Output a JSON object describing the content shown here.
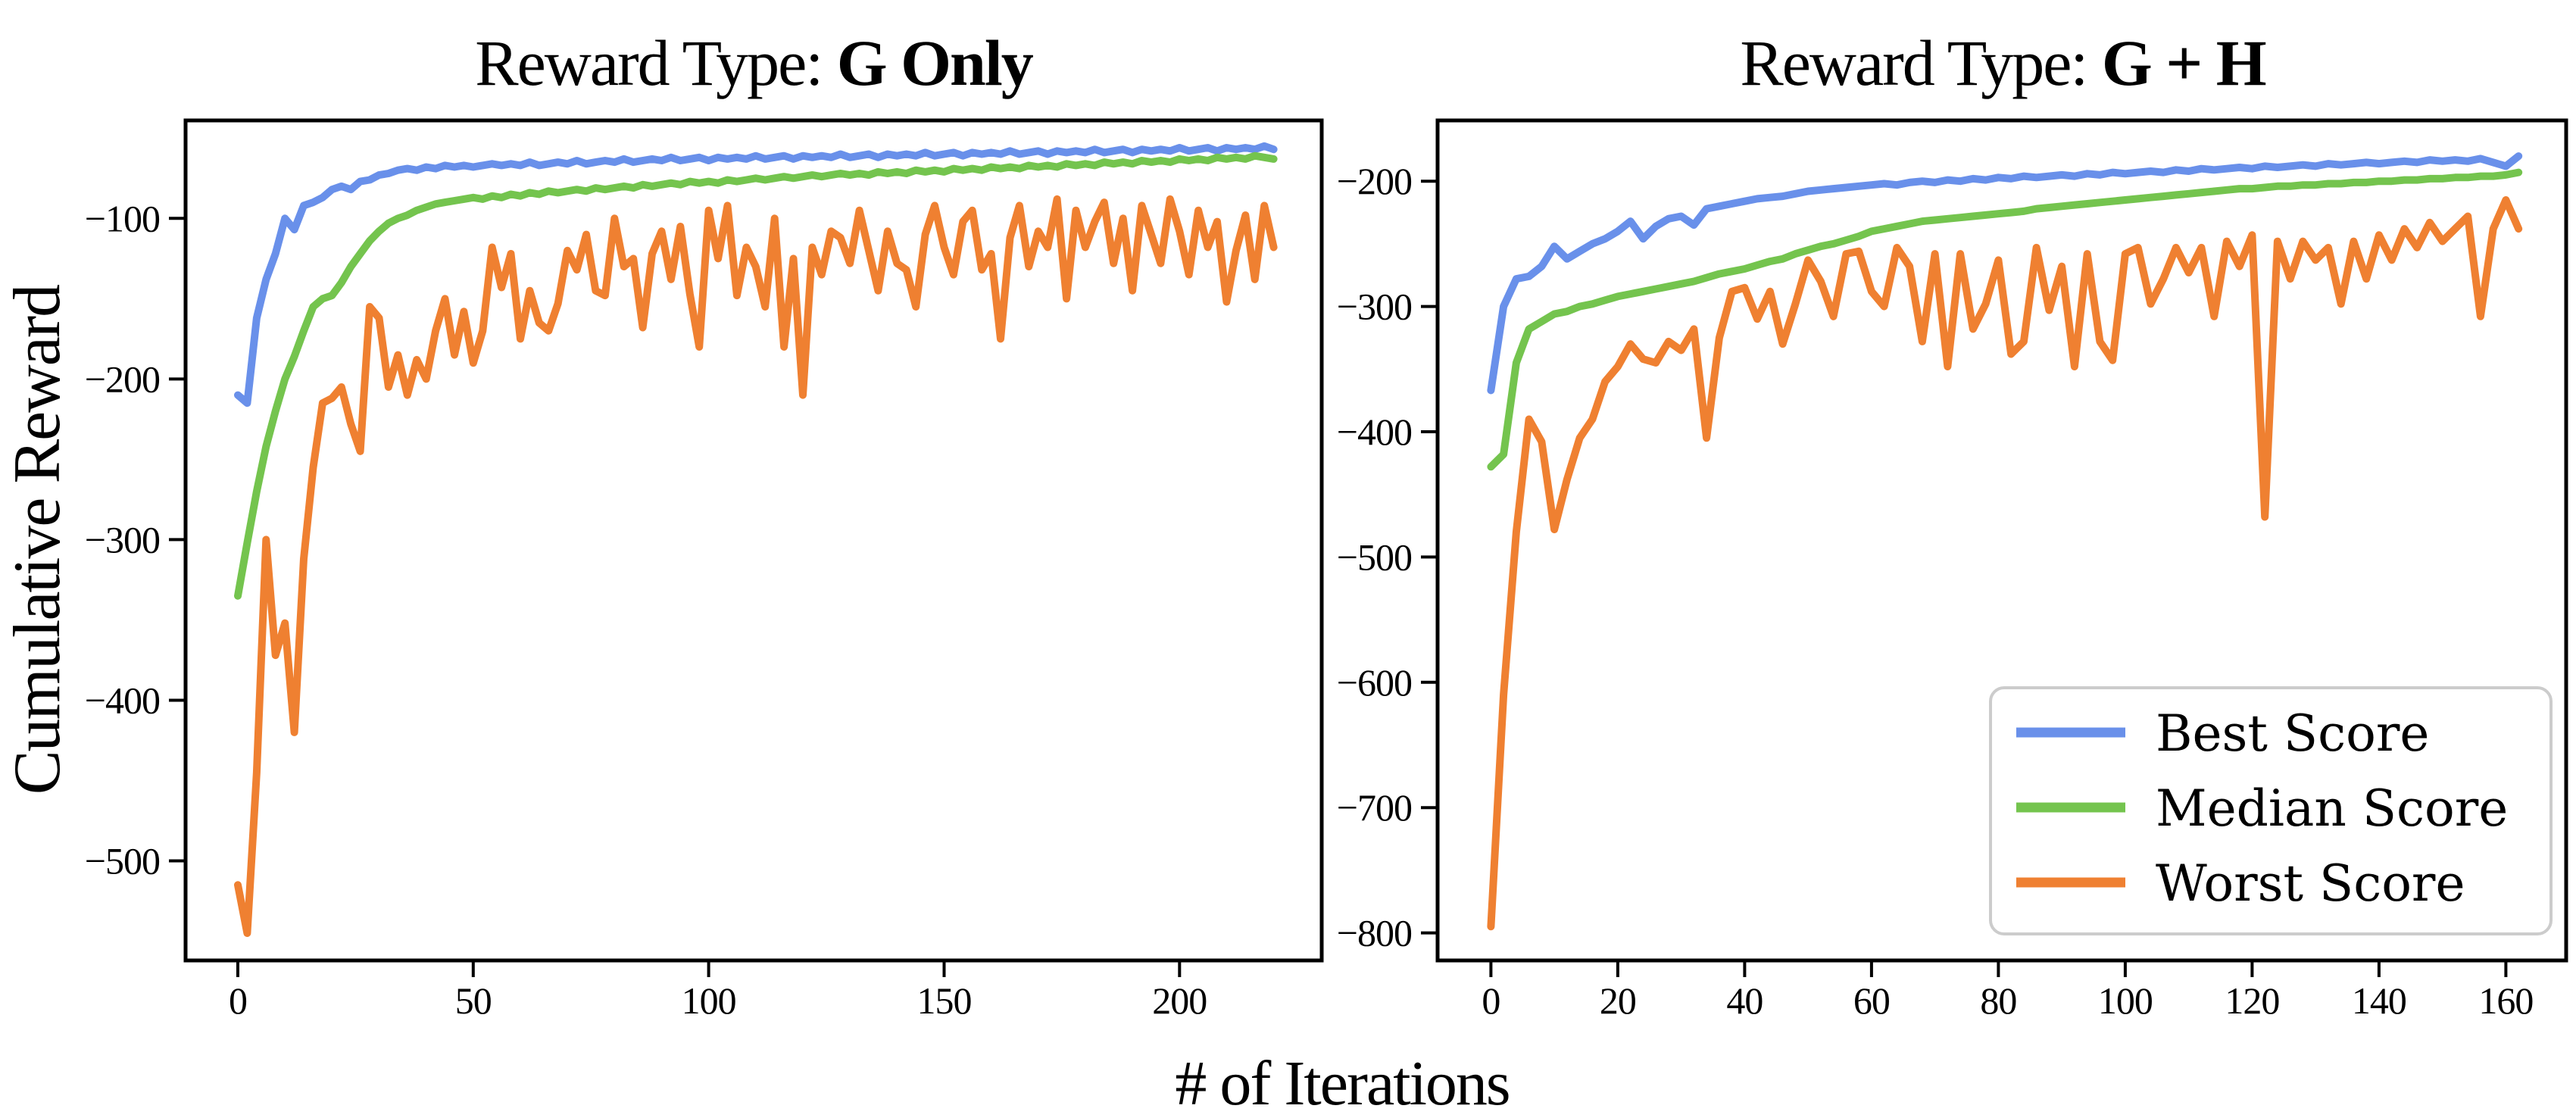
{
  "figure": {
    "xlabel": "# of Iterations",
    "ylabel": "Cumulative Reward",
    "background_color": "#ffffff",
    "text_color": "#000000",
    "legend_border_color": "#cccccc"
  },
  "chart_data": [
    {
      "type": "line",
      "title_prefix": "Reward Type: ",
      "title_bold": "G Only",
      "ylabel": "Cumulative Reward",
      "xlabel_shared": "# of Iterations",
      "xticks": [
        0,
        50,
        100,
        150,
        200
      ],
      "yticks": [
        -100,
        -200,
        -300,
        -400,
        -500
      ],
      "xlim": [
        -11.1,
        230.2
      ],
      "ylim": [
        -562,
        -39
      ],
      "grid": false,
      "x_start": 0,
      "x_step": 2,
      "series": [
        {
          "name": "Best Score",
          "color": "#6990ea",
          "values": [
            -210,
            -215,
            -162,
            -138,
            -122,
            -100,
            -107,
            -92,
            -90,
            -87,
            -82,
            -80,
            -82,
            -77,
            -76,
            -73,
            -72,
            -70,
            -69,
            -70,
            -68,
            -69,
            -67,
            -68,
            -67,
            -68,
            -67,
            -66,
            -67,
            -66,
            -67,
            -65,
            -67,
            -66,
            -65,
            -66,
            -64,
            -66,
            -65,
            -64,
            -65,
            -63,
            -65,
            -64,
            -63,
            -64,
            -62,
            -64,
            -63,
            -62,
            -64,
            -62,
            -63,
            -62,
            -63,
            -61,
            -63,
            -62,
            -61,
            -63,
            -61,
            -62,
            -61,
            -62,
            -60,
            -62,
            -61,
            -60,
            -62,
            -60,
            -61,
            -60,
            -61,
            -59,
            -61,
            -60,
            -59,
            -61,
            -59,
            -60,
            -59,
            -60,
            -58,
            -60,
            -59,
            -58,
            -60,
            -58,
            -59,
            -58,
            -59,
            -57,
            -59,
            -58,
            -57,
            -59,
            -57,
            -58,
            -57,
            -58,
            -56,
            -58,
            -57,
            -56,
            -58,
            -56,
            -57,
            -56,
            -57,
            -55,
            -57
          ]
        },
        {
          "name": "Median Score",
          "color": "#74c44e",
          "values": [
            -335,
            -302,
            -270,
            -242,
            -220,
            -200,
            -186,
            -170,
            -155,
            -150,
            -148,
            -140,
            -130,
            -122,
            -114,
            -108,
            -103,
            -100,
            -98,
            -95,
            -93,
            -91,
            -90,
            -89,
            -88,
            -87,
            -88,
            -86,
            -87,
            -85,
            -86,
            -84,
            -85,
            -83,
            -84,
            -83,
            -82,
            -83,
            -81,
            -82,
            -81,
            -80,
            -81,
            -79,
            -80,
            -79,
            -78,
            -79,
            -77,
            -78,
            -77,
            -78,
            -76,
            -77,
            -76,
            -75,
            -76,
            -75,
            -74,
            -75,
            -74,
            -73,
            -74,
            -73,
            -72,
            -73,
            -72,
            -73,
            -71,
            -72,
            -71,
            -72,
            -70,
            -71,
            -70,
            -71,
            -69,
            -70,
            -69,
            -70,
            -68,
            -69,
            -68,
            -69,
            -67,
            -68,
            -67,
            -68,
            -66,
            -67,
            -66,
            -67,
            -65,
            -66,
            -65,
            -66,
            -64,
            -65,
            -64,
            -65,
            -63,
            -64,
            -63,
            -64,
            -62,
            -63,
            -62,
            -63,
            -61,
            -62,
            -63
          ]
        },
        {
          "name": "Worst Score",
          "color": "#ef8031",
          "values": [
            -515,
            -545,
            -445,
            -300,
            -372,
            -352,
            -420,
            -312,
            -255,
            -215,
            -212,
            -205,
            -228,
            -245,
            -155,
            -162,
            -205,
            -185,
            -210,
            -188,
            -200,
            -170,
            -150,
            -185,
            -158,
            -190,
            -170,
            -118,
            -143,
            -122,
            -175,
            -145,
            -165,
            -170,
            -153,
            -120,
            -132,
            -110,
            -145,
            -148,
            -100,
            -130,
            -125,
            -168,
            -122,
            -108,
            -138,
            -105,
            -147,
            -180,
            -95,
            -125,
            -92,
            -148,
            -118,
            -130,
            -155,
            -100,
            -180,
            -125,
            -210,
            -118,
            -135,
            -108,
            -112,
            -128,
            -95,
            -120,
            -145,
            -108,
            -128,
            -132,
            -155,
            -110,
            -92,
            -118,
            -135,
            -102,
            -95,
            -132,
            -122,
            -175,
            -112,
            -92,
            -130,
            -108,
            -118,
            -88,
            -150,
            -95,
            -118,
            -102,
            -90,
            -128,
            -100,
            -145,
            -92,
            -110,
            -128,
            -88,
            -108,
            -135,
            -95,
            -118,
            -102,
            -152,
            -120,
            -98,
            -138,
            -92,
            -118
          ]
        }
      ]
    },
    {
      "type": "line",
      "title_prefix": "Reward Type: ",
      "title_bold": "G + H",
      "ylabel": "Cumulative Reward",
      "xlabel_shared": "# of Iterations",
      "xticks": [
        0,
        20,
        40,
        60,
        80,
        100,
        120,
        140,
        160
      ],
      "yticks": [
        -200,
        -300,
        -400,
        -500,
        -600,
        -700,
        -800
      ],
      "xlim": [
        -8.4,
        169.5
      ],
      "ylim": [
        -822,
        -151.5
      ],
      "grid": false,
      "x_start": 0,
      "x_step": 2,
      "legend": {
        "position": "lower right",
        "labels": [
          "Best Score",
          "Median Score",
          "Worst Score"
        ]
      },
      "series": [
        {
          "name": "Best Score",
          "color": "#6990ea",
          "values": [
            -367,
            -300,
            -278,
            -276,
            -268,
            -252,
            -262,
            -256,
            -250,
            -246,
            -240,
            -232,
            -246,
            -236,
            -230,
            -228,
            -235,
            -222,
            -220,
            -218,
            -216,
            -214,
            -213,
            -212,
            -210,
            -208,
            -207,
            -206,
            -205,
            -204,
            -203,
            -202,
            -203,
            -201,
            -200,
            -201,
            -199,
            -200,
            -198,
            -199,
            -197,
            -198,
            -196,
            -197,
            -196,
            -195,
            -196,
            -194,
            -195,
            -193,
            -194,
            -193,
            -192,
            -193,
            -191,
            -192,
            -190,
            -191,
            -190,
            -189,
            -190,
            -188,
            -189,
            -188,
            -187,
            -188,
            -186,
            -187,
            -186,
            -185,
            -186,
            -185,
            -184,
            -185,
            -183,
            -184,
            -183,
            -184,
            -182,
            -185,
            -188,
            -180
          ]
        },
        {
          "name": "Median Score",
          "color": "#74c44e",
          "values": [
            -428,
            -418,
            -345,
            -318,
            -312,
            -306,
            -304,
            -300,
            -298,
            -295,
            -292,
            -290,
            -288,
            -286,
            -284,
            -282,
            -280,
            -277,
            -274,
            -272,
            -270,
            -267,
            -264,
            -262,
            -258,
            -255,
            -252,
            -250,
            -247,
            -244,
            -240,
            -238,
            -236,
            -234,
            -232,
            -231,
            -230,
            -229,
            -228,
            -227,
            -226,
            -225,
            -224,
            -222,
            -221,
            -220,
            -219,
            -218,
            -217,
            -216,
            -215,
            -214,
            -213,
            -212,
            -211,
            -210,
            -209,
            -208,
            -207,
            -206,
            -206,
            -205,
            -204,
            -204,
            -203,
            -203,
            -202,
            -202,
            -201,
            -201,
            -200,
            -200,
            -199,
            -199,
            -198,
            -198,
            -197,
            -197,
            -196,
            -196,
            -195,
            -193
          ]
        },
        {
          "name": "Worst Score",
          "color": "#ef8031",
          "values": [
            -795,
            -610,
            -480,
            -390,
            -408,
            -478,
            -438,
            -405,
            -390,
            -360,
            -348,
            -330,
            -342,
            -345,
            -328,
            -335,
            -318,
            -405,
            -325,
            -288,
            -285,
            -310,
            -288,
            -330,
            -298,
            -263,
            -280,
            -308,
            -258,
            -256,
            -288,
            -300,
            -253,
            -268,
            -328,
            -258,
            -348,
            -258,
            -318,
            -298,
            -263,
            -338,
            -328,
            -253,
            -303,
            -268,
            -348,
            -258,
            -328,
            -343,
            -258,
            -253,
            -298,
            -278,
            -253,
            -273,
            -253,
            -308,
            -248,
            -268,
            -243,
            -468,
            -248,
            -278,
            -248,
            -263,
            -253,
            -298,
            -248,
            -278,
            -243,
            -263,
            -238,
            -253,
            -233,
            -248,
            -238,
            -228,
            -308,
            -238,
            -215,
            -238
          ]
        }
      ]
    }
  ]
}
